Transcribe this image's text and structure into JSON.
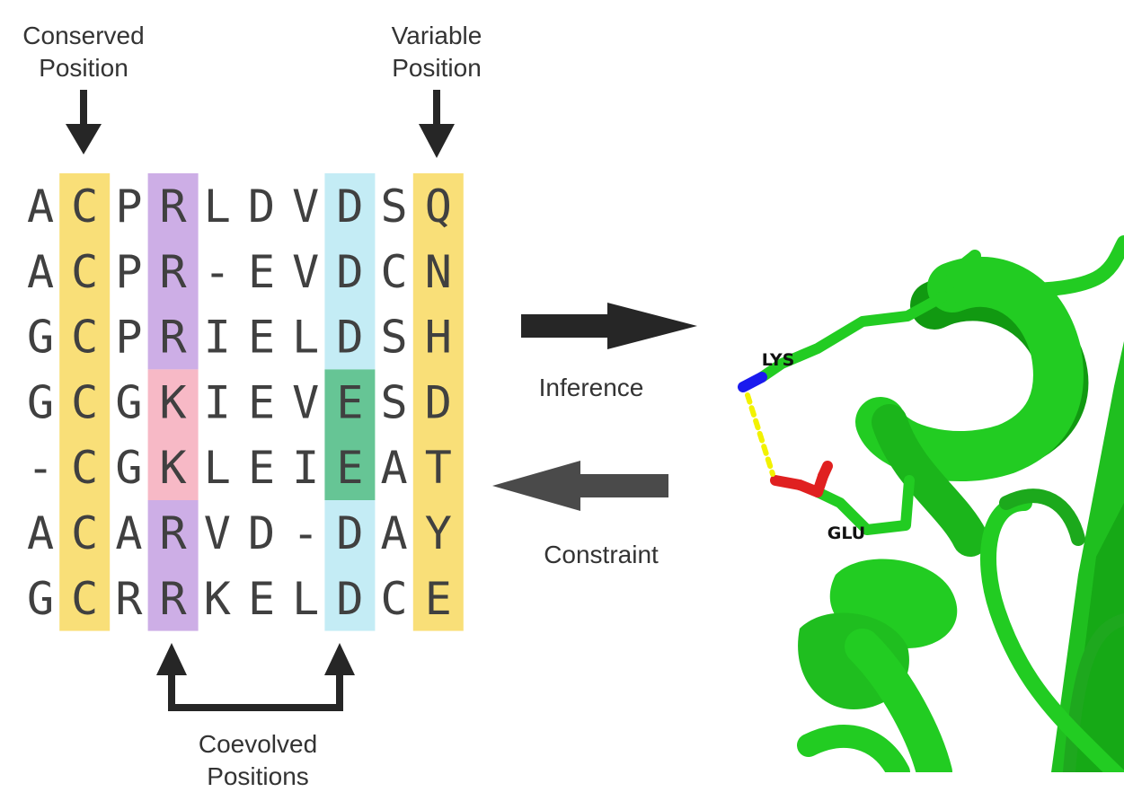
{
  "labels": {
    "conserved": [
      "Conserved",
      "Position"
    ],
    "variable": [
      "Variable",
      "Position"
    ],
    "coevolved": [
      "Coevolved",
      "Positions"
    ],
    "inference": "Inference",
    "constraint": "Constraint",
    "residue_a": "LYS",
    "residue_b": "GLU"
  },
  "alignment": [
    "ACPRLDVDSQ",
    "ACPR-EVDCN",
    "GCPRIELDSH",
    "GCGKIEVESD",
    "-CGKLEIEAT",
    "ACARVD-DAY",
    "GCRRKELDCE"
  ],
  "highlights": [
    {
      "column": 1,
      "rows": [
        0,
        6
      ],
      "color": "#f9df78"
    },
    {
      "column": 9,
      "rows": [
        0,
        6
      ],
      "color": "#f9df78"
    },
    {
      "column": 3,
      "rows": [
        0,
        2
      ],
      "color": "#cdaee6"
    },
    {
      "column": 3,
      "rows": [
        3,
        4
      ],
      "color": "#f7b9c6"
    },
    {
      "column": 3,
      "rows": [
        5,
        6
      ],
      "color": "#cdaee6"
    },
    {
      "column": 7,
      "rows": [
        0,
        2
      ],
      "color": "#c4ecf5"
    },
    {
      "column": 7,
      "rows": [
        3,
        4
      ],
      "color": "#66c595"
    },
    {
      "column": 7,
      "rows": [
        5,
        6
      ],
      "color": "#c4ecf5"
    }
  ],
  "colors": {
    "protein": "#22cc22",
    "protein_dark": "#119911",
    "nitrogen": "#1a1aee",
    "oxygen": "#e02020",
    "contact": "#f2f200",
    "arrow_dark": "#262626",
    "arrow_grey": "#4a4a4a"
  }
}
